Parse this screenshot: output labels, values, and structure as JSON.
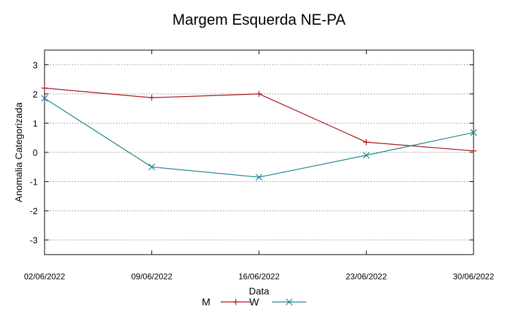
{
  "chart_data": {
    "type": "line",
    "title": "Margem Esquerda NE-PA",
    "xlabel": "Data",
    "ylabel": "Anomalia Categorizada",
    "categories": [
      "02/06/2022",
      "09/06/2022",
      "16/06/2022",
      "23/06/2022",
      "30/06/2022"
    ],
    "x_days": [
      2,
      9,
      16,
      23,
      30
    ],
    "ylim": [
      -3.5,
      3.5
    ],
    "yticks": [
      3,
      2,
      1,
      0,
      -1,
      -2,
      -3
    ],
    "grid": true,
    "legend_position": "bottom-center",
    "series": [
      {
        "name": "M",
        "color": "#a40e14",
        "marker": "plus",
        "values": [
          2.2,
          1.87,
          2.0,
          0.35,
          0.05
        ]
      },
      {
        "name": "W",
        "color": "#15828a",
        "marker": "cross",
        "values": [
          1.85,
          -0.5,
          -0.85,
          -0.1,
          0.68
        ]
      }
    ]
  }
}
